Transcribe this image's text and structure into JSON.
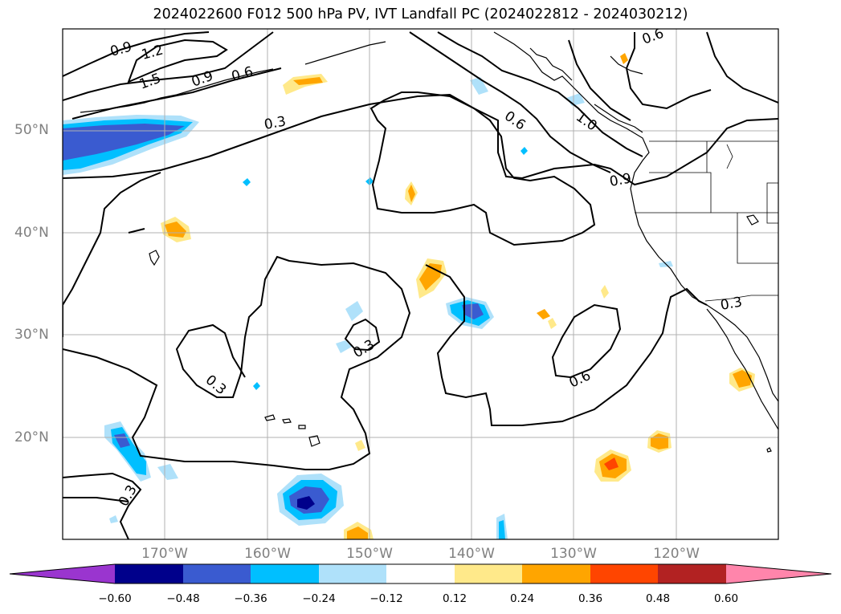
{
  "title": "2024022600 F012 500 hPa PV, IVT Landfall PC (2024022812 - 2024030212)",
  "lat_labels": [
    "50°N",
    "40°N",
    "30°N",
    "20°N"
  ],
  "lon_labels": [
    "170°W",
    "160°W",
    "150°W",
    "140°W",
    "130°W",
    "120°W"
  ],
  "contour_labels": [
    "0.9",
    "1.2",
    "1.5",
    "0.9",
    "0.6",
    "0.3",
    "0.6",
    "1.0",
    "0.9",
    "0.6",
    "0.3",
    "0.3",
    "0.3",
    "0.6",
    "0.3"
  ],
  "colorbar": {
    "ticks": [
      "−0.60",
      "−0.48",
      "−0.36",
      "−0.24",
      "−0.12",
      "0.12",
      "0.24",
      "0.36",
      "0.48",
      "0.60"
    ],
    "colors": [
      "#9a35cf",
      "#00008b",
      "#3a5bd0",
      "#00bfff",
      "#afe1fa",
      "#ffffff",
      "#ffe98a",
      "#ffa500",
      "#ff4500",
      "#b22222",
      "#ff85ab"
    ]
  },
  "map_extent": {
    "lon": [
      -180,
      -110
    ],
    "lat": [
      10,
      60
    ]
  }
}
